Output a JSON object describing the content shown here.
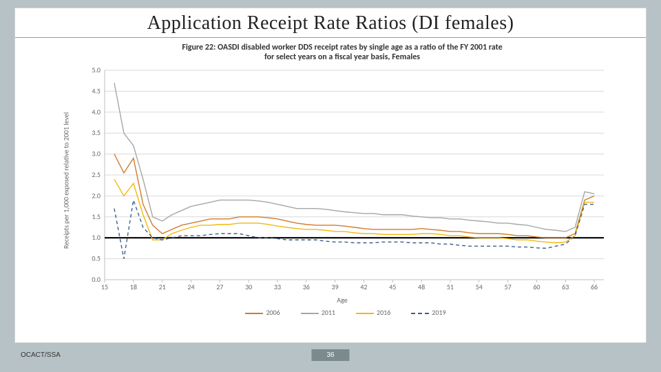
{
  "slide": {
    "title": "Application Receipt Rate Ratios (DI females)",
    "footer_left": "OCACT/SSA",
    "page_number": "36"
  },
  "chart": {
    "type": "line",
    "caption_line1": "Figure 22: OASDI disabled worker DDS receipt rates by single age as a ratio of the FY 2001 rate",
    "caption_line2": "for select years on a fiscal year basis, Females",
    "x_label": "Age",
    "y_label": "Receipts per 1,000 exposed relative to 2001 level",
    "x_ticks": [
      15,
      18,
      21,
      24,
      27,
      30,
      33,
      36,
      39,
      42,
      45,
      48,
      51,
      54,
      57,
      60,
      63,
      66
    ],
    "y_ticks": [
      "0.0",
      "0.5",
      "1.0",
      "1.5",
      "2.0",
      "2.5",
      "3.0",
      "3.5",
      "4.0",
      "4.5",
      "5.0"
    ],
    "xlim": [
      15,
      67
    ],
    "ylim": [
      0,
      5
    ],
    "grid_color": "#d9d9d9",
    "axis_color": "#bfbfbf",
    "tick_font_size": 10,
    "background_color": "#ffffff",
    "reference_line": {
      "y": 1.0,
      "color": "#000000",
      "width": 2.2
    },
    "legend": [
      {
        "name": "2006",
        "color": "#d17b2c",
        "dash": ""
      },
      {
        "name": "2011",
        "color": "#a6a6a6",
        "dash": ""
      },
      {
        "name": "2016",
        "color": "#f2b90f",
        "dash": ""
      },
      {
        "name": "2019",
        "color": "#3a5e8c",
        "dash": "5,4"
      }
    ],
    "series": {
      "2006": {
        "color": "#d17b2c",
        "width": 1.4,
        "dash": "",
        "x": [
          16,
          17,
          18,
          19,
          20,
          21,
          22,
          23,
          24,
          25,
          26,
          27,
          28,
          29,
          30,
          31,
          32,
          33,
          34,
          35,
          36,
          37,
          38,
          39,
          40,
          41,
          42,
          43,
          44,
          45,
          46,
          47,
          48,
          49,
          50,
          51,
          52,
          53,
          54,
          55,
          56,
          57,
          58,
          59,
          60,
          61,
          62,
          63,
          64,
          65,
          66
        ],
        "y": [
          3.0,
          2.55,
          2.9,
          1.8,
          1.3,
          1.1,
          1.2,
          1.3,
          1.35,
          1.4,
          1.45,
          1.45,
          1.45,
          1.5,
          1.5,
          1.5,
          1.48,
          1.45,
          1.4,
          1.35,
          1.32,
          1.3,
          1.3,
          1.3,
          1.28,
          1.25,
          1.22,
          1.2,
          1.2,
          1.2,
          1.2,
          1.2,
          1.22,
          1.2,
          1.18,
          1.15,
          1.15,
          1.12,
          1.1,
          1.1,
          1.1,
          1.08,
          1.05,
          1.05,
          1.02,
          1.0,
          1.0,
          1.0,
          1.1,
          1.9,
          2.0
        ]
      },
      "2011": {
        "color": "#a6a6a6",
        "width": 1.4,
        "dash": "",
        "x": [
          16,
          17,
          18,
          19,
          20,
          21,
          22,
          23,
          24,
          25,
          26,
          27,
          28,
          29,
          30,
          31,
          32,
          33,
          34,
          35,
          36,
          37,
          38,
          39,
          40,
          41,
          42,
          43,
          44,
          45,
          46,
          47,
          48,
          49,
          50,
          51,
          52,
          53,
          54,
          55,
          56,
          57,
          58,
          59,
          60,
          61,
          62,
          63,
          64,
          65,
          66
        ],
        "y": [
          4.7,
          3.5,
          3.2,
          2.4,
          1.5,
          1.4,
          1.55,
          1.65,
          1.75,
          1.8,
          1.85,
          1.9,
          1.9,
          1.9,
          1.9,
          1.88,
          1.85,
          1.8,
          1.75,
          1.7,
          1.7,
          1.7,
          1.68,
          1.65,
          1.62,
          1.6,
          1.58,
          1.58,
          1.55,
          1.55,
          1.55,
          1.52,
          1.5,
          1.48,
          1.48,
          1.45,
          1.45,
          1.42,
          1.4,
          1.38,
          1.35,
          1.35,
          1.32,
          1.3,
          1.25,
          1.2,
          1.18,
          1.15,
          1.25,
          2.1,
          2.05
        ]
      },
      "2016": {
        "color": "#f2b90f",
        "width": 1.4,
        "dash": "",
        "x": [
          16,
          17,
          18,
          19,
          20,
          21,
          22,
          23,
          24,
          25,
          26,
          27,
          28,
          29,
          30,
          31,
          32,
          33,
          34,
          35,
          36,
          37,
          38,
          39,
          40,
          41,
          42,
          43,
          44,
          45,
          46,
          47,
          48,
          49,
          50,
          51,
          52,
          53,
          54,
          55,
          56,
          57,
          58,
          59,
          60,
          61,
          62,
          63,
          64,
          65,
          66
        ],
        "y": [
          2.4,
          2.0,
          2.3,
          1.55,
          0.95,
          0.95,
          1.1,
          1.18,
          1.25,
          1.3,
          1.3,
          1.32,
          1.32,
          1.35,
          1.35,
          1.35,
          1.32,
          1.28,
          1.25,
          1.22,
          1.2,
          1.2,
          1.18,
          1.15,
          1.15,
          1.12,
          1.1,
          1.1,
          1.08,
          1.08,
          1.08,
          1.08,
          1.1,
          1.1,
          1.08,
          1.05,
          1.05,
          1.02,
          1.0,
          1.0,
          1.0,
          0.98,
          0.95,
          0.95,
          0.92,
          0.9,
          0.88,
          0.9,
          1.05,
          1.85,
          1.85
        ]
      },
      "2019": {
        "color": "#3a5e8c",
        "width": 1.4,
        "dash": "5,4",
        "x": [
          16,
          17,
          18,
          19,
          20,
          21,
          22,
          23,
          24,
          25,
          26,
          27,
          28,
          29,
          30,
          31,
          32,
          33,
          34,
          35,
          36,
          37,
          38,
          39,
          40,
          41,
          42,
          43,
          44,
          45,
          46,
          47,
          48,
          49,
          50,
          51,
          52,
          53,
          54,
          55,
          56,
          57,
          58,
          59,
          60,
          61,
          62,
          63,
          64,
          65,
          66
        ],
        "y": [
          1.7,
          0.5,
          1.9,
          1.25,
          1.0,
          0.95,
          1.0,
          1.05,
          1.05,
          1.05,
          1.08,
          1.1,
          1.1,
          1.1,
          1.05,
          1.0,
          1.0,
          0.98,
          0.95,
          0.95,
          0.95,
          0.95,
          0.92,
          0.9,
          0.9,
          0.88,
          0.88,
          0.88,
          0.9,
          0.9,
          0.9,
          0.88,
          0.88,
          0.88,
          0.85,
          0.85,
          0.82,
          0.8,
          0.8,
          0.8,
          0.8,
          0.8,
          0.78,
          0.78,
          0.76,
          0.75,
          0.8,
          0.85,
          1.05,
          1.8,
          1.8
        ]
      }
    }
  }
}
